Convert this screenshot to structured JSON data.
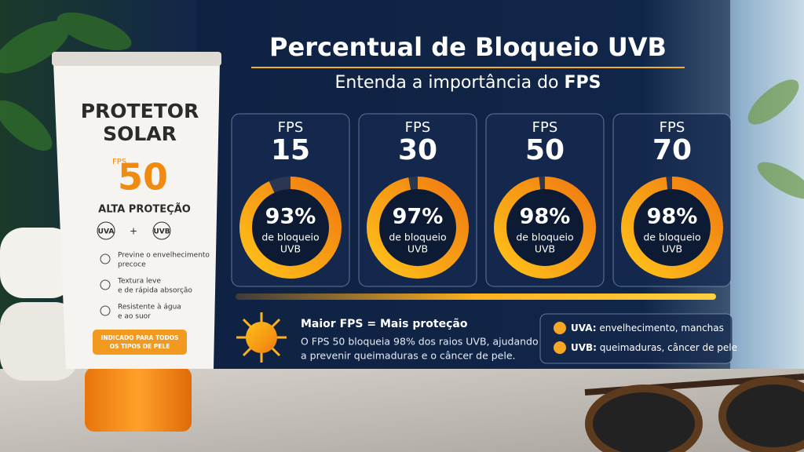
{
  "header": {
    "title": "Percentual de Bloqueio UVB",
    "subtitle": "Entenda a importância do ",
    "subtitle_bold": "FPS"
  },
  "cards": [
    {
      "label": "FPS",
      "fps": 15,
      "value": 93,
      "value_label": "93%",
      "caption": [
        "de bloqueio",
        "UVB"
      ]
    },
    {
      "label": "FPS",
      "fps": 30,
      "value": 97,
      "value_label": "97%",
      "caption": [
        "de bloqueio",
        "UVB"
      ]
    },
    {
      "label": "FPS",
      "fps": 50,
      "value": 98,
      "value_label": "98%",
      "caption": [
        "de bloqueio",
        "UVB"
      ]
    },
    {
      "label": "FPS",
      "fps": 70,
      "value": 98,
      "value_label": "98%",
      "caption": [
        "de bloqueio",
        "UVB"
      ]
    }
  ],
  "info": {
    "heading": "Maior FPS = Mais proteção",
    "lines": [
      "O FPS 50 bloqueia 98% dos raios UVB, ajudando",
      "a prevenir queimaduras e o câncer de pele."
    ]
  },
  "legend": [
    {
      "key": "UVA:",
      "text": " envelhecimento, manchas"
    },
    {
      "key": "UVB:",
      "text": " queimaduras, câncer de pele"
    }
  ],
  "product": {
    "name": [
      "PROTETOR",
      "SOLAR"
    ],
    "fps_label": "FPS",
    "fps": "50",
    "tagline": "ALTA PROTEÇÃO",
    "uva": "UVA",
    "plus": "+",
    "uvb": "UVB",
    "features": [
      [
        "Previne o envelhecimento",
        "precoce"
      ],
      [
        "Textura leve",
        "e de rápida absorção"
      ],
      [
        "Resistente à água",
        "e ao suor"
      ]
    ],
    "badge": [
      "INDICADO PARA TODOS",
      "OS TIPOS DE PELE"
    ]
  }
}
